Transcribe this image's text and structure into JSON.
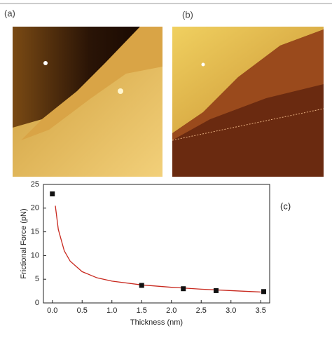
{
  "figure_labels": [
    "(a)",
    "(b)"
  ],
  "chart_data": {
    "type": "scatter",
    "annotation": "(c)",
    "xlabel": "Thickness (nm)",
    "ylabel": "Frictional Force (pN)",
    "xlim": [
      -0.15,
      3.65
    ],
    "ylim": [
      0,
      25
    ],
    "xticks": [
      {
        "value": 0,
        "label": "0.0"
      },
      0.5,
      {
        "value": 1,
        "label": "1.0"
      },
      1.5,
      {
        "value": 2,
        "label": "2.0"
      },
      2.5,
      {
        "value": 3,
        "label": "3.0"
      },
      3.5
    ],
    "yticks": [
      0,
      5,
      10,
      15,
      20,
      25
    ],
    "series": [
      {
        "style": "line",
        "color": "#c8281e",
        "x": [
          0.05,
          0.1,
          0.2,
          0.3,
          0.5,
          0.75,
          1.0,
          1.5,
          2.0,
          2.5,
          3.0,
          3.5
        ],
        "values": [
          20.5,
          15.5,
          11,
          8.8,
          6.6,
          5.3,
          4.6,
          3.8,
          3.3,
          2.9,
          2.6,
          2.3
        ]
      },
      {
        "style": "marker",
        "color": "#111111",
        "x": [
          0,
          1.5,
          2.2,
          2.75,
          3.55
        ],
        "values": [
          23,
          3.7,
          3.0,
          2.6,
          2.4
        ]
      }
    ]
  }
}
